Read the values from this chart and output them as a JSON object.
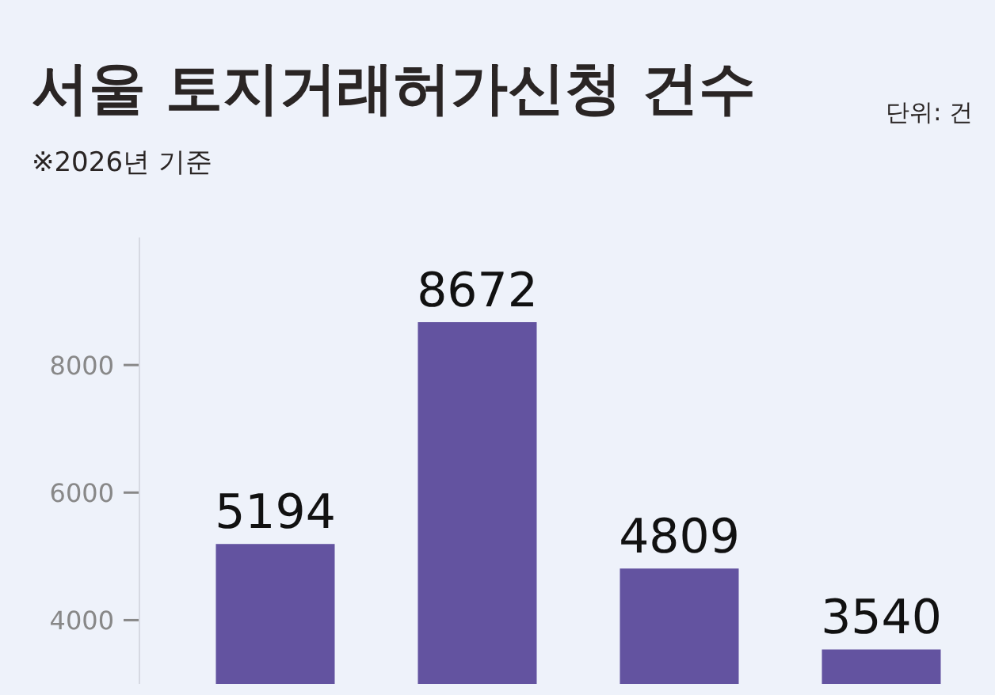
{
  "chart_data": {
    "type": "bar",
    "title": "서울 토지거래허가신청 건수",
    "subtitle": "※2026년 기준",
    "annotations": [
      "단위: 건"
    ],
    "categories": [
      null,
      null,
      null,
      null
    ],
    "values": [
      5194,
      8672,
      4809,
      3540
    ],
    "color": "#6353a0",
    "ylim": [
      3000,
      10000
    ],
    "yticks": [
      4000,
      6000,
      8000
    ],
    "data_labels": true
  }
}
